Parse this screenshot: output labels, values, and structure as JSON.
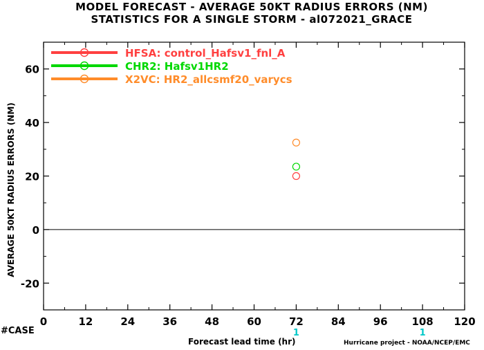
{
  "title_line1": "MODEL FORECAST - AVERAGE 50KT RADIUS ERRORS (NM)",
  "title_line2": "STATISTICS FOR A SINGLE STORM - al072021_GRACE",
  "case_label": "#CASE",
  "credit": "Hurricane project - NOAA/NCEP/EMC",
  "colors": {
    "case": "#00c8c8",
    "zero_line": "#000000",
    "axis": "#000000"
  },
  "chart_data": {
    "type": "scatter",
    "title": "MODEL FORECAST - AVERAGE 50KT RADIUS ERRORS (NM)",
    "subtitle": "STATISTICS FOR A SINGLE STORM - al072021_GRACE",
    "xlabel": "Forecast lead time (hr)",
    "ylabel": "AVERAGE 50KT RADIUS ERRORS (NM)",
    "xlim": [
      0,
      120
    ],
    "ylim": [
      -30,
      70
    ],
    "xticks": [
      0,
      12,
      24,
      36,
      48,
      60,
      72,
      84,
      96,
      108,
      120
    ],
    "yticks": [
      -20,
      0,
      20,
      40,
      60
    ],
    "grid": false,
    "legend_position": "top-left",
    "series": [
      {
        "name": "HFSA: control_Hafsv1_fnl_A",
        "color": "#ff4040",
        "points": [
          {
            "x": 72,
            "y": 20
          }
        ]
      },
      {
        "name": "CHR2: Hafsv1HR2",
        "color": "#00d800",
        "points": [
          {
            "x": 72,
            "y": 23.5
          }
        ]
      },
      {
        "name": "X2VC: HR2_allcsmf20_varycs",
        "color": "#ff8c2a",
        "points": [
          {
            "x": 72,
            "y": 32.5
          }
        ]
      }
    ],
    "case_counts": [
      {
        "x": 72,
        "count": "1"
      },
      {
        "x": 108,
        "count": "1"
      }
    ]
  }
}
